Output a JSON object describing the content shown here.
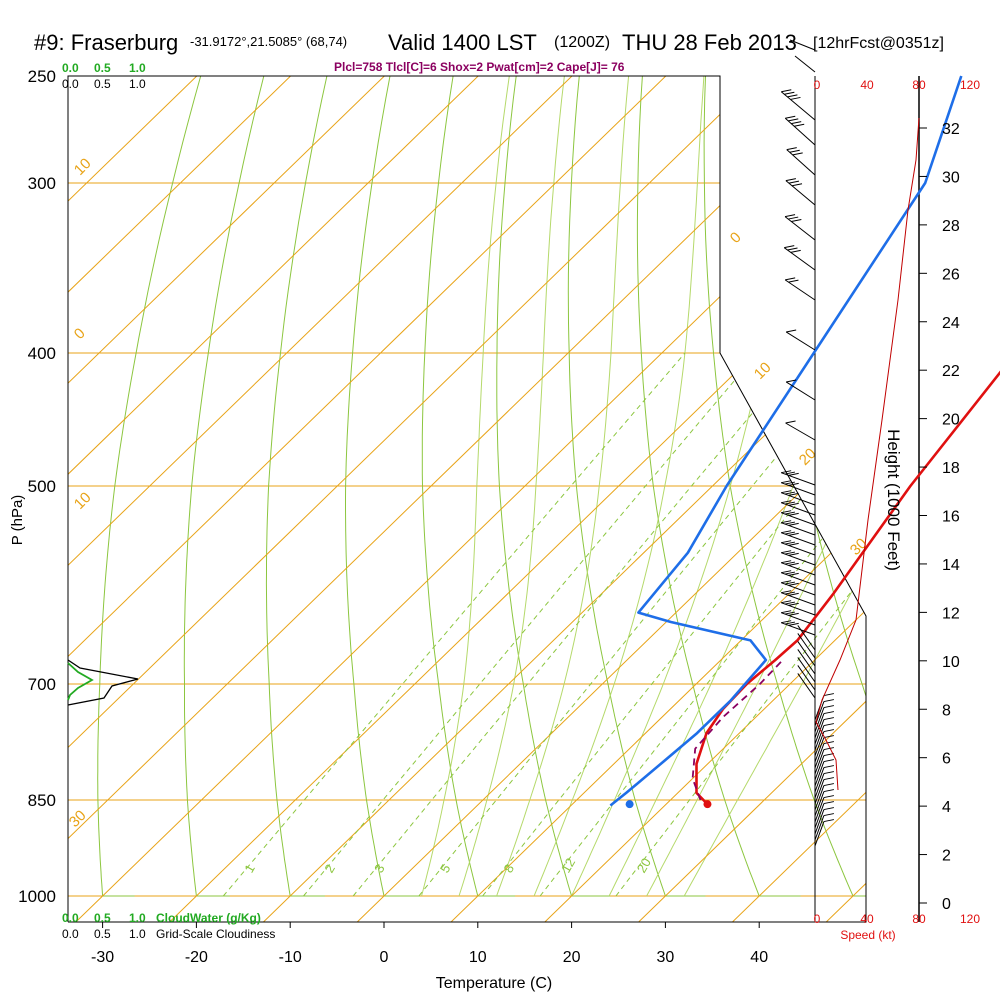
{
  "header": {
    "title_main": "#9: Fraserburg",
    "title_coords": "-31.9172°,21.5085° (68,74)",
    "title_valid": "Valid 1400 LST",
    "title_z": "(1200Z)",
    "title_date": "THU 28 Feb 2013",
    "title_fcst": "[12hrFcst@0351z]",
    "indices": "Plcl=758 Tlcl[C]=6 Shox=2 Pwat[cm]=2 Cape[J]= 76"
  },
  "colors": {
    "isotherm": "#e8a317",
    "dry_adiabat": "#8cc63f",
    "mixing_ratio": "#8cc63f",
    "temperature": "#e01010",
    "dewpoint": "#1e6ee8",
    "parcel": "#8b0060",
    "cloud_water": "#22aa22",
    "indices_text": "#8b0060"
  },
  "chart_data": {
    "type": "line",
    "xlabel": "Temperature (C)",
    "ylabel": "P (hPa)",
    "x_ticks": [
      -30,
      -20,
      -10,
      0,
      10,
      20,
      30,
      40
    ],
    "y_ticks": [
      250,
      300,
      400,
      500,
      700,
      850,
      1000
    ],
    "xlim": [
      -34,
      46
    ],
    "ylim": [
      1000,
      250
    ],
    "isobars": [
      250,
      300,
      400,
      500,
      700,
      850,
      1000
    ],
    "isotherm_labels": [
      "-10",
      "0",
      "10",
      "20",
      "30",
      "0",
      "10",
      "20",
      "30"
    ],
    "mixing_ratio_labels": [
      "1",
      "2",
      "3",
      "5",
      "8",
      "12",
      "20"
    ],
    "series": [
      {
        "name": "Temperature",
        "points": [
          [
            24.4,
            856
          ],
          [
            22.0,
            840
          ],
          [
            18.8,
            800
          ],
          [
            16.5,
            760
          ],
          [
            15.6,
            730
          ],
          [
            15.4,
            700
          ],
          [
            15.8,
            672
          ],
          [
            16.0,
            650
          ],
          [
            14.7,
            600
          ],
          [
            11.1,
            500
          ],
          [
            7.7,
            400
          ],
          [
            5.0,
            300
          ],
          [
            6.5,
            250
          ]
        ]
      },
      {
        "name": "Dewpoint",
        "points": [
          [
            14.2,
            858
          ],
          [
            14.5,
            840
          ],
          [
            15.0,
            800
          ],
          [
            15.5,
            760
          ],
          [
            15.5,
            720
          ],
          [
            14.8,
            672
          ],
          [
            11.0,
            650
          ],
          [
            0.5,
            630
          ],
          [
            -4.0,
            620
          ],
          [
            -5.3,
            560
          ],
          [
            -8.5,
            500
          ],
          [
            -13.8,
            400
          ],
          [
            -20.6,
            300
          ],
          [
            -28.5,
            250
          ]
        ]
      },
      {
        "name": "Parcel",
        "points": [
          [
            23.2,
            850
          ],
          [
            20.0,
            820
          ],
          [
            17.0,
            780
          ],
          [
            16.5,
            740
          ],
          [
            16.8,
            700
          ],
          [
            16.6,
            672
          ]
        ]
      }
    ],
    "surface_temperature_marker": [
      24.4,
      856
    ],
    "surface_dewpoint_marker": [
      16.1,
      856
    ],
    "wind_speed_axis": {
      "label": "Speed (kt)",
      "ticks_bottom_red": [
        "0",
        "40",
        "80",
        "120"
      ],
      "ticks_top_red": [
        "0",
        "40",
        "80",
        "120"
      ]
    },
    "height_axis": {
      "label": "Height (1000 Feet)",
      "ticks": [
        "0",
        "2",
        "4",
        "6",
        "8",
        "10",
        "12",
        "14",
        "16",
        "18",
        "20",
        "22",
        "24",
        "26",
        "28",
        "30",
        "32"
      ]
    },
    "cloud_scale": {
      "top_green": [
        "0.0",
        "0.5",
        "1.0"
      ],
      "top_black": [
        "0.0",
        "0.5",
        "1.0"
      ],
      "bottom_green": [
        "0.0",
        "0.5",
        "1.0"
      ],
      "bottom_green_label": "CloudWater (g/Kg)",
      "bottom_black": [
        "0.0",
        "0.5",
        "1.0"
      ],
      "bottom_black_label": "Grid-Scale Cloudiness"
    }
  }
}
